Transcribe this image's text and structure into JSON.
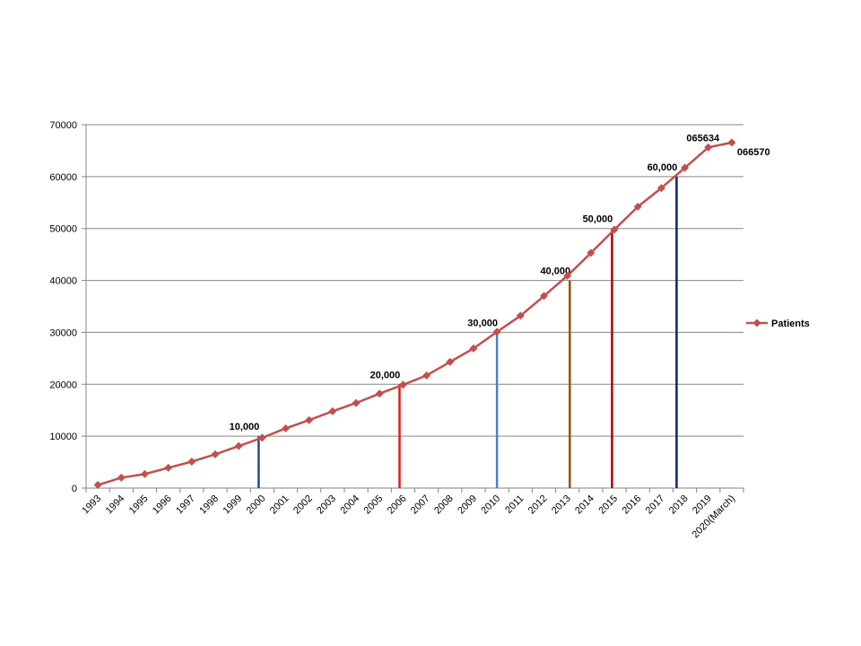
{
  "chart_data": {
    "type": "line",
    "title": "",
    "xlabel": "",
    "ylabel": "",
    "ylim": [
      0,
      70000
    ],
    "yticks": [
      0,
      10000,
      20000,
      30000,
      40000,
      50000,
      60000,
      70000
    ],
    "grid": true,
    "legend_position": "right",
    "categories": [
      "1993",
      "1994",
      "1995",
      "1996",
      "1997",
      "1998",
      "1999",
      "2000",
      "2001",
      "2002",
      "2003",
      "2004",
      "2005",
      "2006",
      "2007",
      "2008",
      "2009",
      "2010",
      "2011",
      "2012",
      "2013",
      "2014",
      "2015",
      "2016",
      "2017",
      "2018",
      "2019",
      "2020(March)"
    ],
    "series": [
      {
        "name": "Patients",
        "color": "#c0504d",
        "values": [
          600,
          2000,
          2700,
          3900,
          5100,
          6500,
          8100,
          9700,
          11500,
          13100,
          14800,
          16400,
          18200,
          19900,
          21700,
          24300,
          26900,
          30100,
          33200,
          37000,
          40900,
          45300,
          49800,
          54200,
          57800,
          61700,
          65634,
          66570
        ]
      }
    ],
    "milestones": [
      {
        "label": "10,000",
        "value": 10000,
        "x_index": 6.85,
        "color": "#1f4e79"
      },
      {
        "label": "20,000",
        "value": 20000,
        "x_index": 12.85,
        "color": "#e31a1c"
      },
      {
        "label": "30,000",
        "value": 30000,
        "x_index": 17.0,
        "color": "#4f81bd"
      },
      {
        "label": "40,000",
        "value": 40000,
        "x_index": 20.1,
        "color": "#9c4f0f"
      },
      {
        "label": "50,000",
        "value": 50000,
        "x_index": 21.9,
        "color": "#b40000"
      },
      {
        "label": "60,000",
        "value": 60000,
        "x_index": 24.65,
        "color": "#0c2461"
      }
    ],
    "annotations": [
      {
        "text": "065634",
        "x_index": 26
      },
      {
        "text": "066570",
        "x_index": 27
      }
    ]
  }
}
